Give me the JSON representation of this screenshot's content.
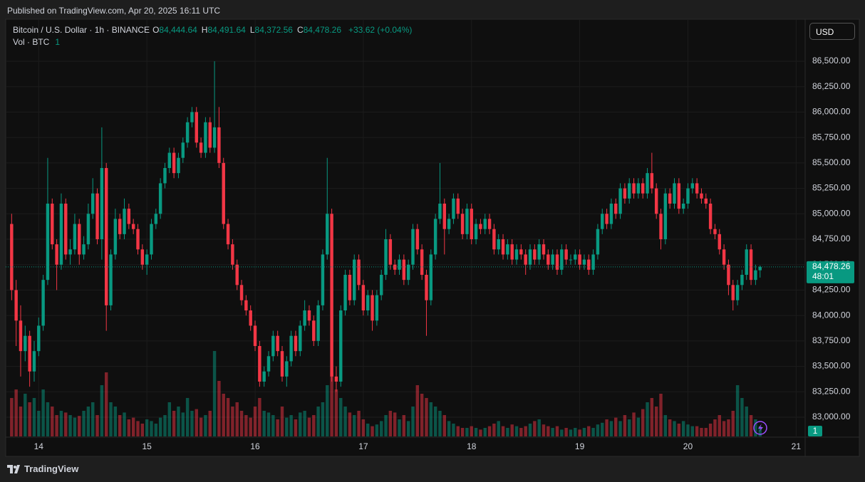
{
  "chart_data": {
    "type": "candlestick",
    "published": "Published on TradingView.com, Apr 20, 2025 16:11 UTC",
    "symbol": "Bitcoin / U.S. Dollar · 1h · BINANCE",
    "ohlc": [
      {
        "key": "O",
        "value": "84,444.64"
      },
      {
        "key": "H",
        "value": "84,491.64"
      },
      {
        "key": "L",
        "value": "84,372.56"
      },
      {
        "key": "C",
        "value": "84,478.26"
      }
    ],
    "change": "+33.62 (+0.04%)",
    "volume_title": "Vol · BTC",
    "volume_setting": "1",
    "currency": "USD",
    "brand": "TradingView",
    "up_color": "#089981",
    "down_color": "#f23645",
    "last_price": {
      "value": 84478.26,
      "label": "84,478.26"
    },
    "countdown": "48:01",
    "ylim": [
      82811,
      86906
    ],
    "yticks": [
      {
        "value": 83000,
        "label": "83,000.00"
      },
      {
        "value": 83250,
        "label": "83,250.00"
      },
      {
        "value": 83500,
        "label": "83,500.00"
      },
      {
        "value": 83750,
        "label": "83,750.00"
      },
      {
        "value": 84000,
        "label": "84,000.00"
      },
      {
        "value": 84250,
        "label": "84,250.00"
      },
      {
        "value": 84500,
        "label": "84,500.00"
      },
      {
        "value": 84750,
        "label": "84,750.00"
      },
      {
        "value": 85000,
        "label": "85,000.00"
      },
      {
        "value": 85250,
        "label": "85,250.00"
      },
      {
        "value": 85500,
        "label": "85,500.00"
      },
      {
        "value": 85750,
        "label": "85,750.00"
      },
      {
        "value": 86000,
        "label": "86,000.00"
      },
      {
        "value": 86250,
        "label": "86,250.00"
      },
      {
        "value": 86500,
        "label": "86,500.00"
      }
    ],
    "xlim": [
      -7,
      170
    ],
    "xticks": [
      {
        "value": 0,
        "label": "14"
      },
      {
        "value": 24,
        "label": "15"
      },
      {
        "value": 48,
        "label": "16"
      },
      {
        "value": 72,
        "label": "17"
      },
      {
        "value": 96,
        "label": "18"
      },
      {
        "value": 120,
        "label": "19"
      },
      {
        "value": 144,
        "label": "20"
      },
      {
        "value": 168,
        "label": "21"
      }
    ],
    "vlim": [
      0,
      100
    ],
    "x": [
      -6,
      -5,
      -4,
      -3,
      -2,
      -1,
      0,
      1,
      2,
      3,
      4,
      5,
      6,
      7,
      8,
      9,
      10,
      11,
      12,
      13,
      14,
      15,
      16,
      17,
      18,
      19,
      20,
      21,
      22,
      23,
      24,
      25,
      26,
      27,
      28,
      29,
      30,
      31,
      32,
      33,
      34,
      35,
      36,
      37,
      38,
      39,
      40,
      41,
      42,
      43,
      44,
      45,
      46,
      47,
      48,
      49,
      50,
      51,
      52,
      53,
      54,
      55,
      56,
      57,
      58,
      59,
      60,
      61,
      62,
      63,
      64,
      65,
      66,
      67,
      68,
      69,
      70,
      71,
      72,
      73,
      74,
      75,
      76,
      77,
      78,
      79,
      80,
      81,
      82,
      83,
      84,
      85,
      86,
      87,
      88,
      89,
      90,
      91,
      92,
      93,
      94,
      95,
      96,
      97,
      98,
      99,
      100,
      101,
      102,
      103,
      104,
      105,
      106,
      107,
      108,
      109,
      110,
      111,
      112,
      113,
      114,
      115,
      116,
      117,
      118,
      119,
      120,
      121,
      122,
      123,
      124,
      125,
      126,
      127,
      128,
      129,
      130,
      131,
      132,
      133,
      134,
      135,
      136,
      137,
      138,
      139,
      140,
      141,
      142,
      143,
      144,
      145,
      146,
      147,
      148,
      149,
      150,
      151,
      152,
      153,
      154,
      155,
      156,
      157,
      158,
      159,
      160
    ],
    "candles": [
      [
        84900,
        85000,
        84150,
        84250
      ],
      [
        84250,
        84350,
        83700,
        83950
      ],
      [
        83950,
        84100,
        83400,
        83650
      ],
      [
        83650,
        83900,
        83550,
        83800
      ],
      [
        83800,
        83850,
        83300,
        83450
      ],
      [
        83450,
        83750,
        83350,
        83650
      ],
      [
        83650,
        83980,
        83600,
        83900
      ],
      [
        83900,
        84400,
        83850,
        84350
      ],
      [
        84350,
        85550,
        84300,
        85100
      ],
      [
        85100,
        85150,
        84650,
        84700
      ],
      [
        84700,
        84750,
        84250,
        84500
      ],
      [
        84500,
        85200,
        84450,
        85100
      ],
      [
        85100,
        85150,
        84550,
        84600
      ],
      [
        84600,
        84750,
        84500,
        84650
      ],
      [
        84650,
        85000,
        84600,
        84900
      ],
      [
        84900,
        84950,
        84500,
        84600
      ],
      [
        84600,
        84780,
        84550,
        84700
      ],
      [
        84700,
        85100,
        84650,
        85000
      ],
      [
        85000,
        85350,
        84950,
        85200
      ],
      [
        85200,
        85250,
        84700,
        84750
      ],
      [
        84750,
        85850,
        84550,
        85450
      ],
      [
        85450,
        85500,
        83850,
        84100
      ],
      [
        84100,
        84650,
        84050,
        84600
      ],
      [
        84600,
        85050,
        84550,
        84950
      ],
      [
        84950,
        85000,
        84750,
        84800
      ],
      [
        84800,
        85150,
        84750,
        85050
      ],
      [
        85050,
        85100,
        84850,
        84900
      ],
      [
        84900,
        84950,
        84800,
        84850
      ],
      [
        84850,
        84900,
        84600,
        84650
      ],
      [
        84650,
        84700,
        84450,
        84500
      ],
      [
        84500,
        84650,
        84400,
        84600
      ],
      [
        84600,
        84950,
        84550,
        84900
      ],
      [
        84900,
        85050,
        84850,
        85000
      ],
      [
        85000,
        85350,
        84950,
        85300
      ],
      [
        85300,
        85500,
        85250,
        85450
      ],
      [
        85450,
        85650,
        85400,
        85600
      ],
      [
        85600,
        85650,
        85350,
        85400
      ],
      [
        85400,
        85600,
        85350,
        85550
      ],
      [
        85550,
        85750,
        85500,
        85700
      ],
      [
        85700,
        85950,
        85650,
        85900
      ],
      [
        85900,
        86050,
        85850,
        86000
      ],
      [
        86000,
        86050,
        85650,
        85700
      ],
      [
        85700,
        85750,
        85550,
        85600
      ],
      [
        85600,
        85950,
        85550,
        85900
      ],
      [
        85900,
        85950,
        85600,
        85650
      ],
      [
        85650,
        86500,
        85600,
        85850
      ],
      [
        85850,
        86050,
        85450,
        85500
      ],
      [
        85500,
        85550,
        84850,
        84900
      ],
      [
        84900,
        84950,
        84650,
        84700
      ],
      [
        84700,
        84750,
        84450,
        84500
      ],
      [
        84500,
        84550,
        84250,
        84300
      ],
      [
        84300,
        84350,
        84100,
        84150
      ],
      [
        84150,
        84200,
        84000,
        84050
      ],
      [
        84050,
        84100,
        83850,
        83900
      ],
      [
        83900,
        83950,
        83650,
        83700
      ],
      [
        83700,
        83750,
        83300,
        83350
      ],
      [
        83350,
        83500,
        83300,
        83450
      ],
      [
        83450,
        83650,
        83400,
        83600
      ],
      [
        83600,
        83850,
        83550,
        83800
      ],
      [
        83800,
        83850,
        83600,
        83650
      ],
      [
        83650,
        83700,
        83350,
        83400
      ],
      [
        83400,
        83600,
        83300,
        83550
      ],
      [
        83550,
        83850,
        83500,
        83800
      ],
      [
        83800,
        83850,
        83600,
        83650
      ],
      [
        83650,
        83950,
        83600,
        83900
      ],
      [
        83900,
        84150,
        83850,
        84050
      ],
      [
        84050,
        84100,
        83900,
        83950
      ],
      [
        83950,
        84000,
        83700,
        83750
      ],
      [
        83750,
        84150,
        83700,
        84100
      ],
      [
        84100,
        84650,
        84050,
        84600
      ],
      [
        84600,
        85550,
        84550,
        85000
      ],
      [
        85000,
        85050,
        83350,
        83400
      ],
      [
        83400,
        83500,
        83250,
        83350
      ],
      [
        83350,
        84100,
        83300,
        84050
      ],
      [
        84050,
        84450,
        84000,
        84400
      ],
      [
        84400,
        84450,
        84100,
        84150
      ],
      [
        84150,
        84600,
        84100,
        84550
      ],
      [
        84550,
        84600,
        84250,
        84300
      ],
      [
        84300,
        84350,
        84000,
        84050
      ],
      [
        84050,
        84250,
        84000,
        84200
      ],
      [
        84200,
        84250,
        83850,
        83950
      ],
      [
        83950,
        84250,
        83900,
        84200
      ],
      [
        84200,
        84450,
        84150,
        84400
      ],
      [
        84400,
        84850,
        84350,
        84750
      ],
      [
        84750,
        84800,
        84450,
        84500
      ],
      [
        84500,
        84550,
        84400,
        84450
      ],
      [
        84450,
        84600,
        84400,
        84550
      ],
      [
        84550,
        84600,
        84300,
        84350
      ],
      [
        84350,
        84550,
        84300,
        84500
      ],
      [
        84500,
        84900,
        84450,
        84850
      ],
      [
        84850,
        84900,
        84600,
        84650
      ],
      [
        84650,
        84700,
        84350,
        84400
      ],
      [
        84400,
        84450,
        83800,
        84150
      ],
      [
        84150,
        84650,
        84100,
        84600
      ],
      [
        84600,
        85000,
        84550,
        84950
      ],
      [
        84950,
        85500,
        84900,
        85100
      ],
      [
        85100,
        85150,
        84600,
        84850
      ],
      [
        84850,
        85000,
        84800,
        84950
      ],
      [
        84950,
        85200,
        84900,
        85150
      ],
      [
        85150,
        85200,
        84950,
        85000
      ],
      [
        85000,
        85050,
        84750,
        84800
      ],
      [
        84800,
        85100,
        84750,
        85050
      ],
      [
        85050,
        85100,
        84700,
        84750
      ],
      [
        84750,
        84950,
        84700,
        84900
      ],
      [
        84900,
        84950,
        84800,
        84850
      ],
      [
        84850,
        85000,
        84800,
        84950
      ],
      [
        84950,
        85000,
        84800,
        84850
      ],
      [
        84850,
        84900,
        84600,
        84650
      ],
      [
        84650,
        84800,
        84600,
        84750
      ],
      [
        84750,
        84800,
        84550,
        84600
      ],
      [
        84600,
        84750,
        84550,
        84700
      ],
      [
        84700,
        84750,
        84500,
        84550
      ],
      [
        84550,
        84700,
        84500,
        84650
      ],
      [
        84650,
        84700,
        84550,
        84600
      ],
      [
        84600,
        84650,
        84400,
        84500
      ],
      [
        84500,
        84700,
        84450,
        84650
      ],
      [
        84650,
        84700,
        84500,
        84550
      ],
      [
        84550,
        84750,
        84500,
        84700
      ],
      [
        84700,
        84750,
        84550,
        84600
      ],
      [
        84600,
        84650,
        84450,
        84500
      ],
      [
        84500,
        84650,
        84450,
        84600
      ],
      [
        84600,
        84650,
        84400,
        84450
      ],
      [
        84450,
        84700,
        84400,
        84650
      ],
      [
        84650,
        84700,
        84500,
        84550
      ],
      [
        84550,
        84600,
        84500,
        84550
      ],
      [
        84550,
        84650,
        84500,
        84600
      ],
      [
        84600,
        84650,
        84450,
        84500
      ],
      [
        84500,
        84600,
        84450,
        84550
      ],
      [
        84550,
        84600,
        84400,
        84450
      ],
      [
        84450,
        84650,
        84400,
        84600
      ],
      [
        84600,
        84900,
        84550,
        84850
      ],
      [
        84850,
        85050,
        84800,
        85000
      ],
      [
        85000,
        85050,
        84850,
        84900
      ],
      [
        84900,
        85150,
        84850,
        85100
      ],
      [
        85100,
        85150,
        84950,
        85000
      ],
      [
        85000,
        85300,
        84950,
        85250
      ],
      [
        85250,
        85300,
        85100,
        85150
      ],
      [
        85150,
        85350,
        85100,
        85300
      ],
      [
        85300,
        85350,
        85150,
        85200
      ],
      [
        85200,
        85350,
        85150,
        85300
      ],
      [
        85300,
        85350,
        85150,
        85200
      ],
      [
        85200,
        85450,
        85150,
        85400
      ],
      [
        85400,
        85600,
        85200,
        85250
      ],
      [
        85250,
        85300,
        84950,
        85000
      ],
      [
        85000,
        85050,
        84650,
        84750
      ],
      [
        84750,
        85250,
        84700,
        85200
      ],
      [
        85200,
        85250,
        85050,
        85100
      ],
      [
        85100,
        85350,
        85050,
        85300
      ],
      [
        85300,
        85350,
        85000,
        85050
      ],
      [
        85050,
        85150,
        85000,
        85100
      ],
      [
        85100,
        85300,
        85050,
        85250
      ],
      [
        85250,
        85350,
        85200,
        85300
      ],
      [
        85300,
        85350,
        85150,
        85200
      ],
      [
        85200,
        85250,
        85100,
        85150
      ],
      [
        85150,
        85200,
        85050,
        85100
      ],
      [
        85100,
        85150,
        84800,
        84850
      ],
      [
        84850,
        84900,
        84750,
        84800
      ],
      [
        84800,
        84850,
        84600,
        84650
      ],
      [
        84650,
        84700,
        84450,
        84500
      ],
      [
        84500,
        84550,
        84200,
        84300
      ],
      [
        84300,
        84350,
        84050,
        84150
      ],
      [
        84150,
        84350,
        84100,
        84300
      ],
      [
        84300,
        84450,
        84250,
        84400
      ],
      [
        84400,
        84700,
        84350,
        84650
      ],
      [
        84650,
        84700,
        84300,
        84350
      ],
      [
        84350,
        84500,
        84300,
        84444.64
      ],
      [
        84444.64,
        84491.64,
        84372.56,
        84478.26
      ]
    ],
    "volume": [
      45,
      55,
      35,
      50,
      40,
      45,
      30,
      55,
      40,
      35,
      25,
      30,
      28,
      25,
      22,
      24,
      30,
      35,
      40,
      25,
      60,
      75,
      40,
      35,
      25,
      28,
      20,
      22,
      18,
      15,
      20,
      18,
      15,
      22,
      25,
      40,
      30,
      35,
      28,
      45,
      30,
      32,
      22,
      25,
      30,
      100,
      65,
      50,
      45,
      35,
      40,
      30,
      25,
      22,
      35,
      45,
      30,
      28,
      25,
      20,
      35,
      22,
      25,
      20,
      28,
      30,
      22,
      25,
      35,
      40,
      60,
      75,
      55,
      45,
      35,
      28,
      25,
      30,
      20,
      15,
      12,
      14,
      18,
      25,
      30,
      28,
      20,
      25,
      18,
      35,
      60,
      50,
      45,
      40,
      35,
      30,
      25,
      18,
      15,
      12,
      10,
      10,
      12,
      10,
      8,
      10,
      12,
      15,
      18,
      12,
      10,
      14,
      12,
      10,
      12,
      15,
      18,
      20,
      14,
      12,
      10,
      12,
      8,
      10,
      8,
      10,
      8,
      10,
      12,
      10,
      14,
      16,
      20,
      18,
      22,
      18,
      25,
      20,
      28,
      22,
      32,
      40,
      45,
      35,
      50,
      25,
      20,
      18,
      15,
      18,
      14,
      12,
      12,
      10,
      10,
      15,
      20,
      25,
      18,
      20,
      30,
      60,
      45,
      35,
      25,
      20,
      12
    ]
  }
}
